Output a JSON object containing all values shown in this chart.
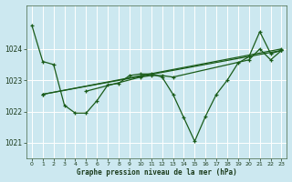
{
  "bg_color": "#cce8f0",
  "grid_color": "#b0d8e8",
  "line_color": "#1a5c1a",
  "title": "Graphe pression niveau de la mer (hPa)",
  "xlim": [
    -0.5,
    23.5
  ],
  "ylim": [
    1020.5,
    1025.4
  ],
  "yticks": [
    1021,
    1022,
    1023,
    1024
  ],
  "xticks": [
    0,
    1,
    2,
    3,
    4,
    5,
    6,
    7,
    8,
    9,
    10,
    11,
    12,
    13,
    14,
    15,
    16,
    17,
    18,
    19,
    20,
    21,
    22,
    23
  ],
  "series": [
    {
      "x": [
        0,
        1,
        2,
        3,
        4,
        5,
        6,
        7,
        8,
        9,
        10,
        11,
        12,
        13,
        14,
        15,
        16,
        17,
        18,
        19,
        20,
        21,
        22,
        23
      ],
      "y": [
        1024.75,
        1023.6,
        1023.5,
        1022.2,
        1021.95,
        1021.95,
        1022.35,
        1022.85,
        1022.9,
        1023.15,
        1023.2,
        1023.2,
        1023.1,
        1022.55,
        1021.8,
        1021.05,
        1021.85,
        1022.55,
        1023.0,
        1023.55,
        1023.75,
        1024.55,
        1023.85,
        1023.95
      ]
    },
    {
      "x": [
        1,
        23
      ],
      "y": [
        1022.55,
        1023.95
      ]
    },
    {
      "x": [
        1,
        23
      ],
      "y": [
        1022.55,
        1024.0
      ]
    },
    {
      "x": [
        5,
        10,
        11,
        12,
        13,
        20,
        21,
        22,
        23
      ],
      "y": [
        1022.65,
        1023.1,
        1023.15,
        1023.15,
        1023.1,
        1023.65,
        1024.0,
        1023.65,
        1023.95
      ]
    }
  ]
}
